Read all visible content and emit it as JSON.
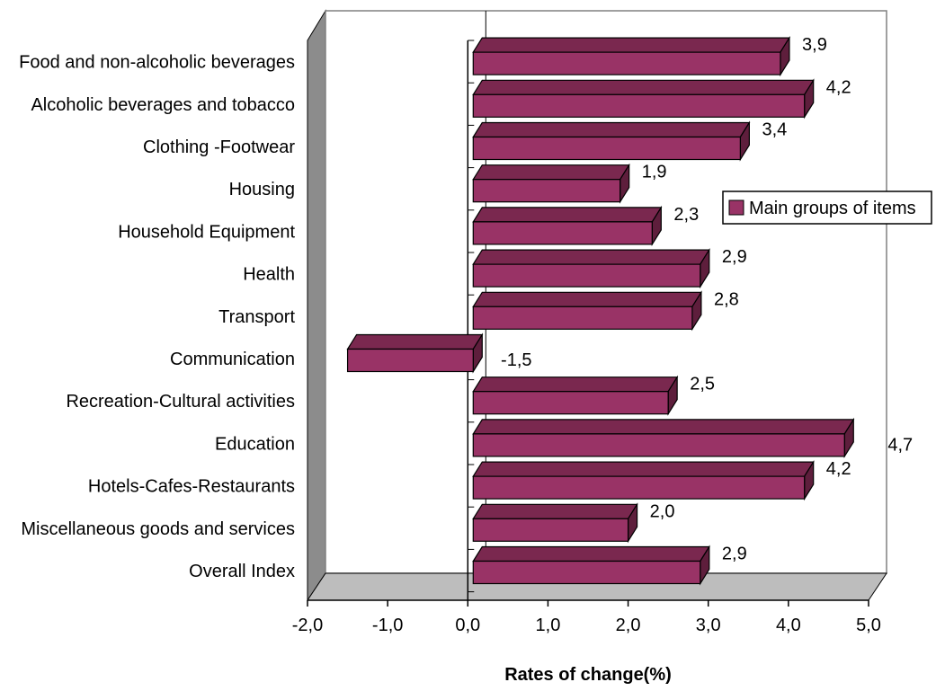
{
  "chart_data": {
    "type": "bar",
    "orientation": "horizontal",
    "style": "3d",
    "categories": [
      "Food and non-alcoholic beverages",
      "Alcoholic beverages and tobacco",
      "Clothing -Footwear",
      "Housing",
      "Household Equipment",
      "Health",
      "Transport",
      "Communication",
      "Recreation-Cultural activities",
      "Education",
      "Hotels-Cafes-Restaurants",
      "Miscellaneous goods and services",
      "Overall Index"
    ],
    "series": [
      {
        "name": "Main groups of items",
        "values": [
          3.9,
          4.2,
          3.4,
          1.9,
          2.3,
          2.9,
          2.8,
          -1.5,
          2.5,
          4.7,
          4.2,
          2.0,
          2.9
        ],
        "labels": [
          "3,9",
          "4,2",
          "3,4",
          "1,9",
          "2,3",
          "2,9",
          "2,8",
          "-1,5",
          "2,5",
          "4,7",
          "4,2",
          "2,0",
          "2,9"
        ],
        "color": "#993366"
      }
    ],
    "xlabel": "Rates of change(%)",
    "ylabel": "",
    "xlim": [
      -2.0,
      5.0
    ],
    "xticks": [
      -2.0,
      -1.0,
      0.0,
      1.0,
      2.0,
      3.0,
      4.0,
      5.0
    ],
    "xtick_labels": [
      "-2,0",
      "-1,0",
      "0,0",
      "1,0",
      "2,0",
      "3,0",
      "4,0",
      "5,0"
    ],
    "grid": false,
    "legend": {
      "position": "right",
      "entries": [
        "Main groups of items"
      ]
    }
  },
  "colors": {
    "bar_front": "#993366",
    "bar_top": "#7a284f",
    "bar_side": "#5e1e3c",
    "wall_side": "#8c8c8c",
    "floor": "#bdbdbd"
  }
}
